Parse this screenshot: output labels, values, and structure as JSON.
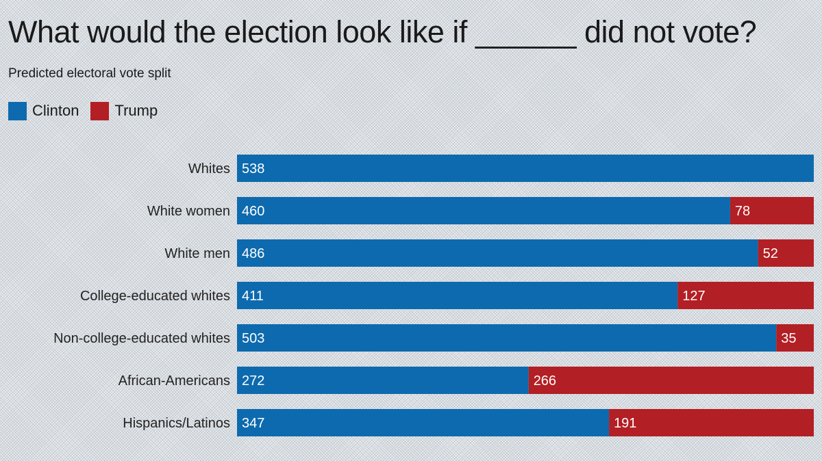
{
  "chart_data": {
    "type": "bar",
    "orientation": "horizontal",
    "stacked": true,
    "title": "What would the election look like if ______ did not vote?",
    "subtitle": "Predicted electoral vote split",
    "categories": [
      "Whites",
      "White women",
      "White men",
      "College-educated whites",
      "Non-college-educated whites",
      "African-Americans",
      "Hispanics/Latinos"
    ],
    "series": [
      {
        "name": "Clinton",
        "color": "#0d6aae",
        "values": [
          538,
          460,
          486,
          411,
          503,
          272,
          347
        ]
      },
      {
        "name": "Trump",
        "color": "#b21f24",
        "values": [
          0,
          78,
          52,
          127,
          35,
          266,
          191
        ]
      }
    ],
    "xlim": [
      0,
      538
    ],
    "grid": false,
    "legend_position": "top-left",
    "data_labels": true
  }
}
